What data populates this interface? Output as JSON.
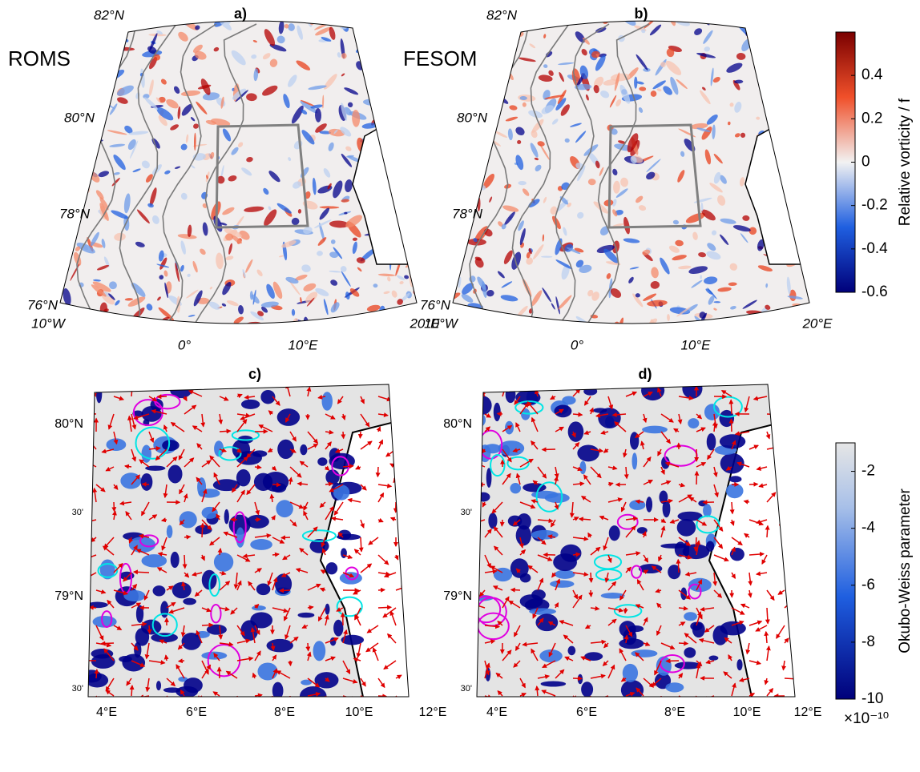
{
  "panels": [
    {
      "label": "a)",
      "model": "ROMS",
      "lat_labels": [
        "82°N",
        "80°N",
        "78°N",
        "76°N"
      ],
      "lon_labels": [
        "10°W",
        "0°",
        "10°E",
        "20°E"
      ]
    },
    {
      "label": "b)",
      "model": "FESOM",
      "lat_labels": [
        "82°N",
        "80°N",
        "78°N",
        "76°N"
      ],
      "lon_labels": [
        "10°W",
        "0°",
        "10°E",
        "20°E"
      ]
    },
    {
      "label": "c)",
      "lat_labels": [
        "80°N",
        "30'",
        "79°N",
        "30'"
      ],
      "lon_labels": [
        "4°E",
        "6°E",
        "8°E",
        "10°E",
        "12°E"
      ]
    },
    {
      "label": "d)",
      "lat_labels": [
        "80°N",
        "30'",
        "79°N",
        "30'"
      ],
      "lon_labels": [
        "4°E",
        "6°E",
        "8°E",
        "10°E",
        "12°E"
      ]
    }
  ],
  "colorbars": [
    {
      "label": "Relative vorticity / f",
      "lim": [
        -0.6,
        0.6
      ],
      "ticks": [
        -0.6,
        -0.4,
        -0.2,
        0,
        0.2,
        0.4
      ]
    },
    {
      "label": "Okubo-Weiss parameter",
      "lim": [
        -10,
        -1
      ],
      "ticks": [
        -10,
        -8,
        -6,
        -4,
        -2
      ],
      "multiplier": "×10⁻¹⁰"
    }
  ]
}
